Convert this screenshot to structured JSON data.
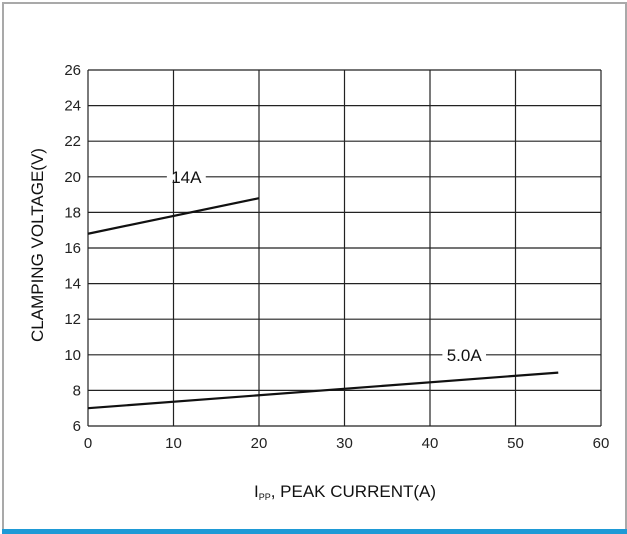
{
  "chart_data": {
    "type": "line",
    "title": "",
    "xlabel": {
      "main": "I",
      "sub": "PP",
      "rest": ", PEAK CURRENT(A)"
    },
    "ylabel": "CLAMPING VOLTAGE(V)",
    "xlim": [
      0,
      60
    ],
    "ylim": [
      6,
      26
    ],
    "xticks": [
      0,
      10,
      20,
      30,
      40,
      50,
      60
    ],
    "yticks": [
      6,
      8,
      10,
      12,
      14,
      16,
      18,
      20,
      22,
      24,
      26
    ],
    "grid": true,
    "series": [
      {
        "name": "14A",
        "x": [
          0,
          20
        ],
        "y": [
          16.8,
          18.8
        ],
        "label_at": [
          11.5,
          20
        ]
      },
      {
        "name": "5.0A",
        "x": [
          0,
          55
        ],
        "y": [
          7.0,
          9.0
        ],
        "label_at": [
          44,
          10
        ]
      }
    ]
  },
  "colors": {
    "frame_border": "#a9a9a9",
    "bottom_bar": "#1e9ad6",
    "grid": "#222222",
    "line": "#111111"
  }
}
